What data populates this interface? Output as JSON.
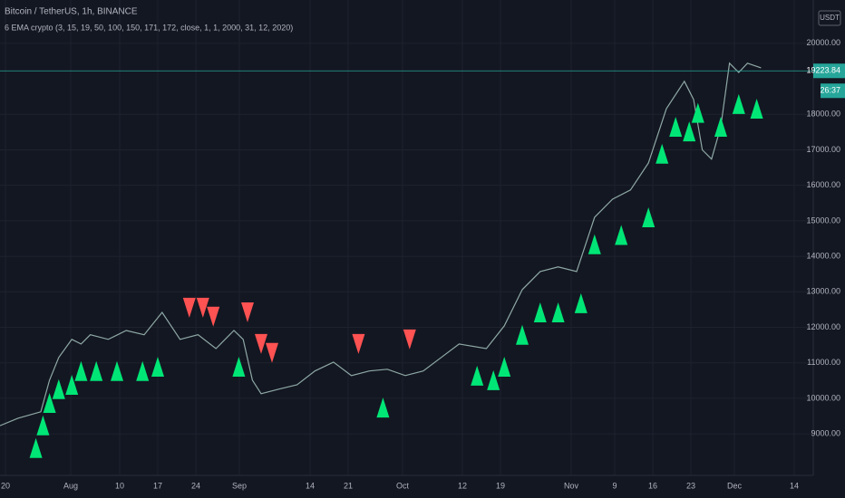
{
  "chart_data": {
    "type": "line",
    "title": "Bitcoin / TetherUS, 1h, BINANCE",
    "subtitle": "6 EMA crypto (3, 15, 19, 50, 100, 150, 171, 172, close, 1, 1, 2000, 31, 12, 2020)",
    "currency": "USDT",
    "countdown": "26:37",
    "last_price": 19223.84,
    "last_price_color": "#26a69a",
    "grid": true,
    "xlim": [
      -1,
      148.5
    ],
    "ylim": [
      7830,
      21220
    ],
    "xticks": [
      {
        "value": 0,
        "label": "20"
      },
      {
        "value": 12,
        "label": "Aug"
      },
      {
        "value": 21,
        "label": "10"
      },
      {
        "value": 28,
        "label": "17"
      },
      {
        "value": 35,
        "label": "24"
      },
      {
        "value": 43,
        "label": "Sep"
      },
      {
        "value": 56,
        "label": "14"
      },
      {
        "value": 63,
        "label": "21"
      },
      {
        "value": 73,
        "label": "Oct"
      },
      {
        "value": 84,
        "label": "12"
      },
      {
        "value": 91,
        "label": "19"
      },
      {
        "value": 104,
        "label": "Nov"
      },
      {
        "value": 112,
        "label": "9"
      },
      {
        "value": 119,
        "label": "16"
      },
      {
        "value": 126,
        "label": "23"
      },
      {
        "value": 134,
        "label": "Dec"
      },
      {
        "value": 145,
        "label": "14"
      }
    ],
    "yticks": [
      {
        "value": 9000,
        "label": "9000.00"
      },
      {
        "value": 10000,
        "label": "10000.00"
      },
      {
        "value": 11000,
        "label": "11000.00"
      },
      {
        "value": 12000,
        "label": "12000.00"
      },
      {
        "value": 13000,
        "label": "13000.00"
      },
      {
        "value": 14000,
        "label": "14000.00"
      },
      {
        "value": 15000,
        "label": "15000.00"
      },
      {
        "value": 16000,
        "label": "16000.00"
      },
      {
        "value": 17000,
        "label": "17000.00"
      },
      {
        "value": 18000,
        "label": "18000.00"
      },
      {
        "value": 20000,
        "label": "20000.00"
      }
    ],
    "price": {
      "color": "#8fa9a5",
      "x": [
        -1,
        2.3,
        6.5,
        8.1,
        9.8,
        12.2,
        13.9,
        15.6,
        18.9,
        22.2,
        25.5,
        28.8,
        32.1,
        35.4,
        38.7,
        42.0,
        43.7,
        45.4,
        47.0,
        50.3,
        53.6,
        56.9,
        60.3,
        63.6,
        66.9,
        70.2,
        73.5,
        76.8,
        80.1,
        83.4,
        88.4,
        91.7,
        95.0,
        98.3,
        101.6,
        105.0,
        108.3,
        111.6,
        114.9,
        118.2,
        121.5,
        124.8,
        126.5,
        128.1,
        129.8,
        131.5,
        133.1,
        134.8,
        136.4,
        138.9
      ],
      "values": [
        9230,
        9440,
        9620,
        10510,
        11150,
        11660,
        11530,
        11790,
        11660,
        11910,
        11790,
        12420,
        11660,
        11790,
        11400,
        11910,
        11660,
        10510,
        10130,
        10260,
        10380,
        10770,
        11020,
        10640,
        10770,
        10820,
        10640,
        10770,
        11150,
        11530,
        11400,
        12040,
        13060,
        13570,
        13700,
        13570,
        15100,
        15610,
        15870,
        16630,
        18160,
        18930,
        18420,
        17000,
        16740,
        17650,
        19440,
        19180,
        19440,
        19310
      ]
    },
    "buy_signals": {
      "color": "#00e676",
      "x": [
        5.6,
        6.9,
        8.1,
        9.8,
        12.2,
        13.9,
        16.7,
        20.5,
        25.2,
        28.0,
        42.9,
        69.4,
        86.7,
        89.7,
        91.7,
        95.0,
        98.3,
        101.6,
        105.8,
        108.3,
        113.2,
        118.2,
        120.7,
        123.2,
        125.7,
        127.3,
        131.5,
        134.8,
        138.1
      ],
      "values": [
        8600,
        9240,
        9870,
        10260,
        10380,
        10770,
        10770,
        10770,
        10770,
        10890,
        10890,
        9740,
        10640,
        10510,
        10890,
        11790,
        12420,
        12420,
        12680,
        14340,
        14600,
        15100,
        16890,
        17650,
        17520,
        18040,
        17650,
        18290,
        18160
      ]
    },
    "sell_signals": {
      "color": "#ff5252",
      "x": [
        33.8,
        36.3,
        38.2,
        44.5,
        47.0,
        49.0,
        64.9,
        74.3
      ],
      "values": [
        12550,
        12550,
        12300,
        12420,
        11530,
        11280,
        11530,
        11660
      ]
    }
  }
}
